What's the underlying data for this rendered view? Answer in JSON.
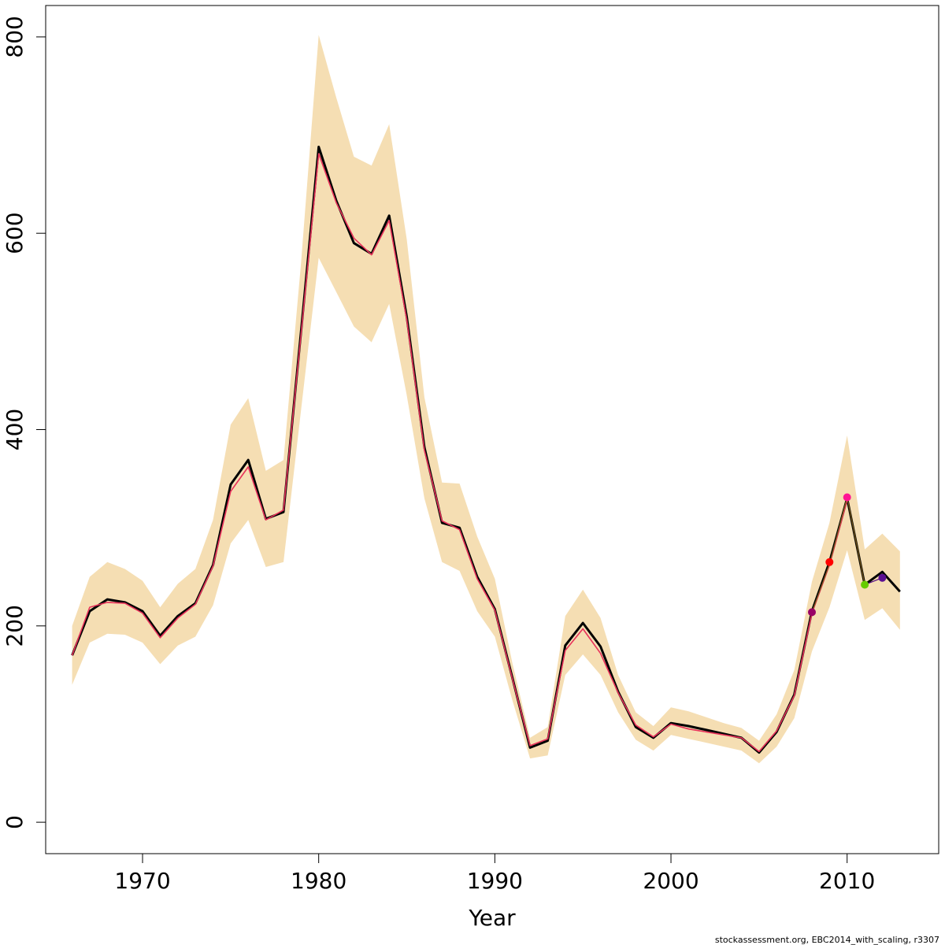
{
  "chart_data": {
    "type": "line",
    "xlabel": "Year",
    "ylabel": "",
    "xlim": [
      1964.5,
      2015.2
    ],
    "ylim": [
      -32,
      832
    ],
    "x_ticks": [
      1970,
      1980,
      1990,
      2000,
      2010
    ],
    "y_ticks": [
      0,
      200,
      400,
      600,
      800
    ],
    "credit": "stockassessment.org, EBC2014_with_scaling, r3307",
    "band": {
      "color": "#f5deb3",
      "x": [
        1966,
        1967,
        1968,
        1969,
        1970,
        1971,
        1972,
        1973,
        1974,
        1975,
        1976,
        1977,
        1978,
        1979,
        1980,
        1981,
        1982,
        1983,
        1984,
        1985,
        1986,
        1987,
        1988,
        1989,
        1990,
        1991,
        1992,
        1993,
        1994,
        1995,
        1996,
        1997,
        1998,
        1999,
        2000,
        2001,
        2002,
        2003,
        2004,
        2005,
        2006,
        2007,
        2008,
        2009,
        2010,
        2011,
        2012,
        2013
      ],
      "upper": [
        200,
        250,
        265,
        258,
        246,
        219,
        243,
        258,
        308,
        405,
        432,
        358,
        369,
        570,
        802,
        738,
        678,
        669,
        711,
        594,
        433,
        346,
        345,
        291,
        248,
        162,
        86,
        97,
        210,
        237,
        208,
        150,
        112,
        98,
        117,
        113,
        107,
        101,
        96,
        83,
        110,
        155,
        245,
        305,
        394,
        278,
        294,
        276
      ],
      "lower": [
        140,
        183,
        192,
        191,
        183,
        161,
        180,
        189,
        221,
        284,
        308,
        260,
        265,
        420,
        575,
        540,
        505,
        489,
        528,
        435,
        330,
        265,
        256,
        215,
        189,
        124,
        65,
        68,
        150,
        171,
        150,
        112,
        84,
        73,
        89,
        85,
        81,
        77,
        73,
        60,
        77,
        106,
        174,
        219,
        277,
        206,
        218,
        196
      ]
    },
    "series": [
      {
        "color": "#000000",
        "x": [
          1966,
          1967,
          1968,
          1969,
          1970,
          1971,
          1972,
          1973,
          1974,
          1975,
          1976,
          1977,
          1978,
          1979,
          1980,
          1981,
          1982,
          1983,
          1984,
          1985,
          1986,
          1987,
          1988,
          1989,
          1990,
          1991,
          1992,
          1993,
          1994,
          1995,
          1996,
          1997,
          1998,
          1999,
          2000,
          2001,
          2002,
          2003,
          2004,
          2005,
          2006,
          2007,
          2008,
          2009,
          2010,
          2011,
          2012,
          2013
        ],
        "values": [
          170,
          215,
          227,
          224,
          215,
          190,
          210,
          223,
          262,
          344,
          369,
          309,
          316,
          500,
          688,
          633,
          590,
          579,
          618,
          515,
          382,
          305,
          300,
          250,
          217,
          147,
          76,
          83,
          180,
          203,
          179,
          133,
          97,
          86,
          101,
          98,
          94,
          90,
          86,
          71,
          92,
          130,
          215,
          265,
          330,
          242,
          255,
          235
        ]
      },
      {
        "color": "#e8325a",
        "x": [
          1966,
          1967,
          1968,
          1969,
          1970,
          1971,
          1972,
          1973,
          1974,
          1975,
          1976,
          1977,
          1978,
          1979,
          1980,
          1981,
          1982,
          1983,
          1984,
          1985,
          1986,
          1987,
          1988,
          1989,
          1990,
          1991,
          1992,
          1993,
          1994,
          1995,
          1996,
          1997,
          1998,
          1999,
          2000,
          2001,
          2002,
          2003,
          2004,
          2005,
          2006,
          2007,
          2008,
          2009,
          2010
        ],
        "values": [
          170,
          219,
          224,
          223,
          213,
          188,
          208,
          222,
          261,
          337,
          362,
          308,
          318,
          497,
          681,
          631,
          595,
          578,
          613,
          512,
          379,
          307,
          298,
          248,
          216,
          146,
          78,
          85,
          175,
          197,
          172,
          132,
          99,
          87,
          100,
          95,
          92,
          89,
          86,
          72,
          93,
          129,
          213,
          262,
          328
        ]
      },
      {
        "color": "#7a5a1a",
        "x": [
          2008,
          2009,
          2010,
          2011
        ],
        "values": [
          214,
          263,
          331,
          242
        ]
      },
      {
        "color": "#4b0082",
        "x": [
          2011,
          2012
        ],
        "values": [
          242,
          249
        ]
      }
    ],
    "points": [
      {
        "x": 2008,
        "y": 214,
        "color": "#990066"
      },
      {
        "x": 2009,
        "y": 265,
        "color": "#ff0000"
      },
      {
        "x": 2010,
        "y": 331,
        "color": "#ff1493"
      },
      {
        "x": 2011,
        "y": 242,
        "color": "#66cc00"
      },
      {
        "x": 2012,
        "y": 249,
        "color": "#5b0f91"
      }
    ]
  }
}
